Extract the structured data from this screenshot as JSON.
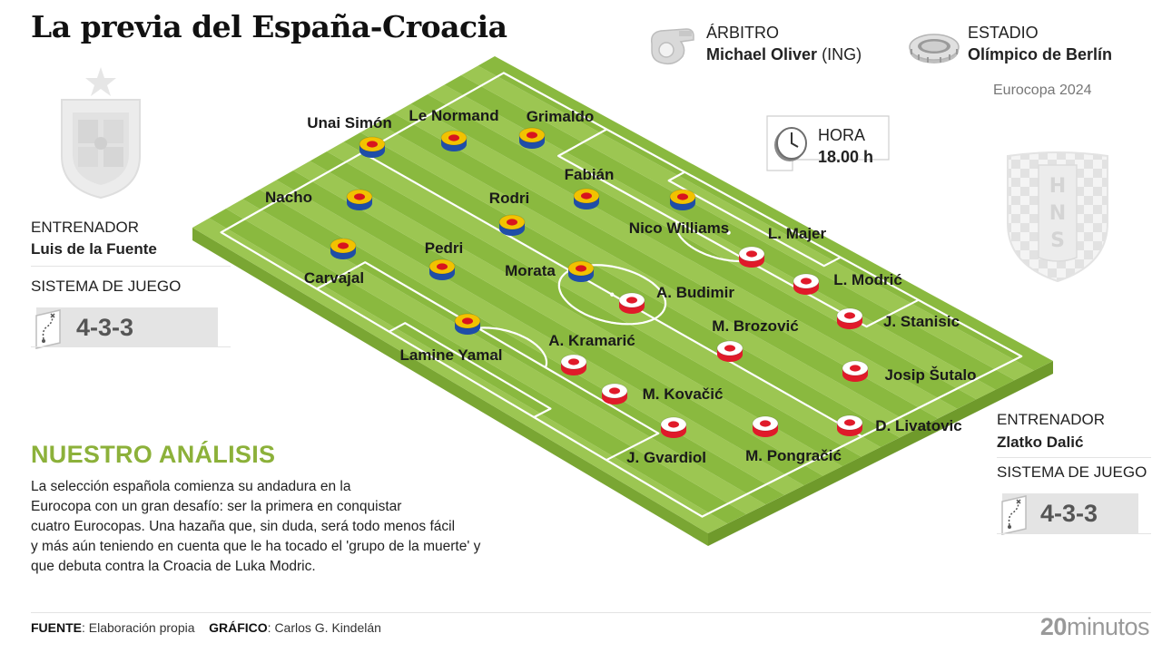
{
  "title": "La previa del España-Croacia",
  "referee": {
    "label": "ÁRBITRO",
    "name": "Michael Oliver",
    "country": "(ING)"
  },
  "stadium": {
    "label": "ESTADIO",
    "name": "Olímpico de Berlín"
  },
  "competition": "Eurocopa 2024",
  "time": {
    "label": "HORA",
    "value": "18.00 h"
  },
  "spain": {
    "coach_label": "ENTRENADOR",
    "coach": "Luis de la Fuente",
    "system_label": "SISTEMA DE JUEGO",
    "formation": "4-3-3",
    "players": [
      "Unai Simón",
      "Le Normand",
      "Grimaldo",
      "Nacho",
      "Rodri",
      "Fabián",
      "Nico Williams",
      "Carvajal",
      "Pedri",
      "Morata",
      "Lamine Yamal"
    ],
    "colors": {
      "chip_top": "#f2c200",
      "chip_center": "#d8141e",
      "chip_side": "#1f4ea8"
    }
  },
  "croatia": {
    "coach_label": "ENTRENADOR",
    "coach": "Zlatko Dalić",
    "system_label": "SISTEMA DE JUEGO",
    "formation": "4-3-3",
    "crest_text": "HNS",
    "players": [
      "L. Majer",
      "L. Modrić",
      "A. Budimir",
      "J. Stanisic",
      "M. Brozović",
      "A. Kramarić",
      "Josip Šutalo",
      "M. Kovačić",
      "D. Livatovic",
      "J. Gvardiol",
      "M. Pongračić"
    ],
    "colors": {
      "chip_top": "#ffffff",
      "chip_center": "#e01a2a",
      "chip_side": "#e01a2a"
    }
  },
  "analysis": {
    "title": "NUESTRO ANÁLISIS",
    "lines": [
      "La selección española comienza su andadura en la",
      "Eurocopa con un gran desafío: ser la primera en conquistar",
      "cuatro Eurocopas. Una hazaña que, sin duda, será todo menos fácil",
      "y más aún teniendo en cuenta que le ha tocado el 'grupo de la muerte' y",
      "que debuta contra la Croacia de Luka Modric."
    ]
  },
  "footer": {
    "source_label": "FUENTE",
    "source": "Elaboración propia",
    "graphic_label": "GRÁFICO",
    "graphic": "Carlos G. Kindelán"
  },
  "brand": {
    "number": "20",
    "word": "minutos"
  },
  "pitch_colors": {
    "light": "#9cc652",
    "dark": "#8ab93f",
    "edge_front": "#6f9a2b",
    "edge_side": "#7aa633"
  }
}
